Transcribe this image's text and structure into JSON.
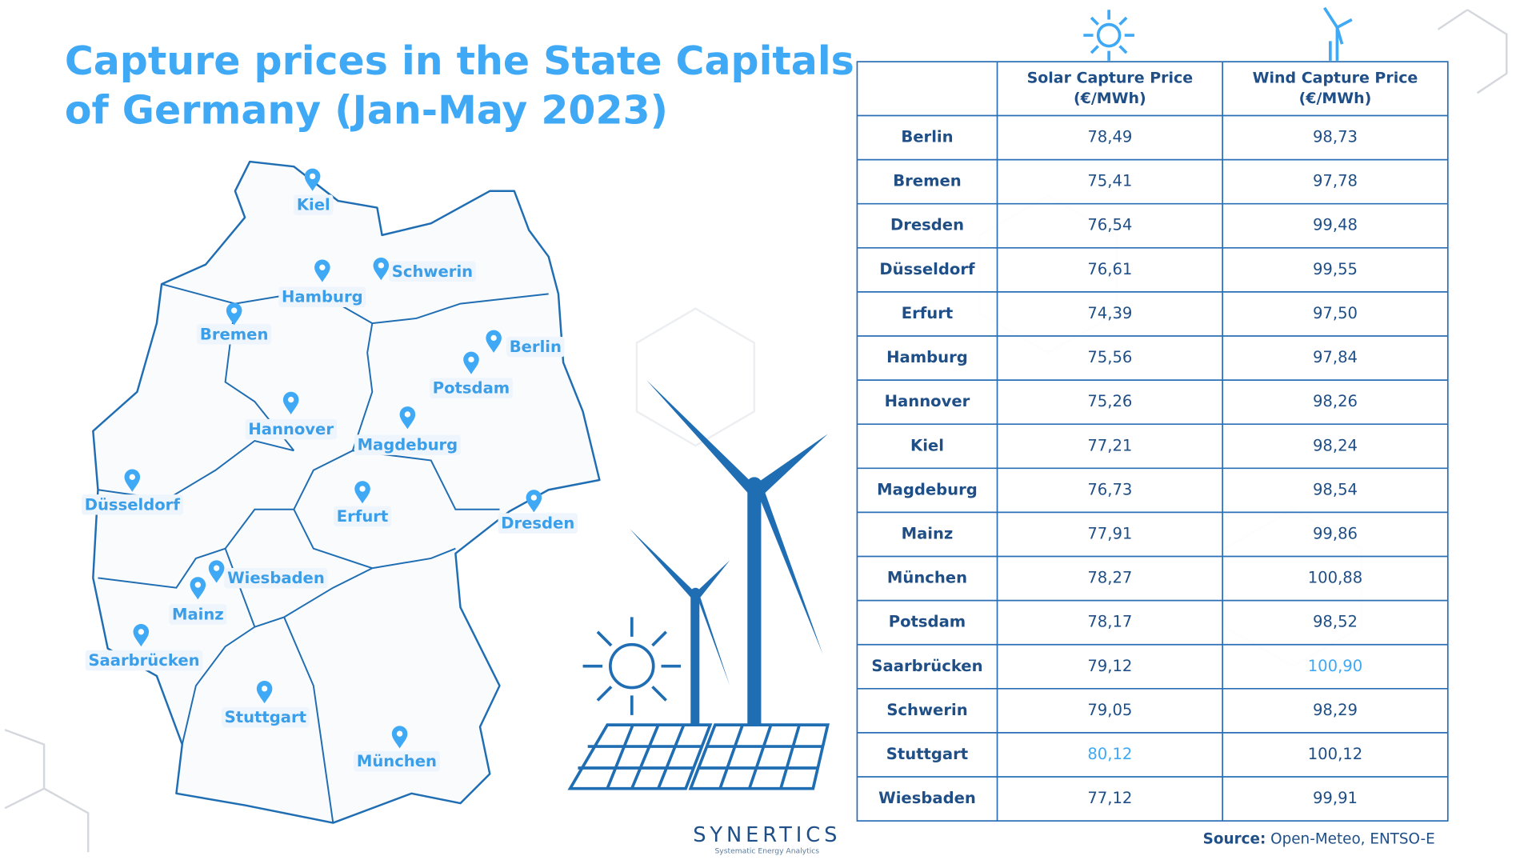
{
  "title": [
    "Capture prices in the State Capitals",
    "of Germany (Jan-May 2023)"
  ],
  "map": {
    "cities": [
      "Kiel",
      "Hamburg",
      "Schwerin",
      "Bremen",
      "Berlin",
      "Potsdam",
      "Hannover",
      "Magdeburg",
      "Düsseldorf",
      "Erfurt",
      "Dresden",
      "Wiesbaden",
      "Mainz",
      "Saarbrücken",
      "Stuttgart",
      "München"
    ]
  },
  "table": {
    "columns": [
      [
        "Solar Capture Price",
        "(€/MWh)"
      ],
      [
        "Wind Capture Price",
        "(€/MWh)"
      ]
    ],
    "rows": [
      [
        "Berlin",
        "78,49",
        "98,73"
      ],
      [
        "Bremen",
        "75,41",
        "97,78"
      ],
      [
        "Dresden",
        "76,54",
        "99,48"
      ],
      [
        "Düsseldorf",
        "76,61",
        "99,55"
      ],
      [
        "Erfurt",
        "74,39",
        "97,50"
      ],
      [
        "Hamburg",
        "75,56",
        "97,84"
      ],
      [
        "Hannover",
        "75,26",
        "98,26"
      ],
      [
        "Kiel",
        "77,21",
        "98,24"
      ],
      [
        "Magdeburg",
        "76,73",
        "98,54"
      ],
      [
        "Mainz",
        "77,91",
        "99,86"
      ],
      [
        "München",
        "78,27",
        "100,88"
      ],
      [
        "Potsdam",
        "78,17",
        "98,52"
      ],
      [
        "Saarbrücken",
        "79,12",
        "100,90"
      ],
      [
        "Schwerin",
        "79,05",
        "98,29"
      ],
      [
        "Stuttgart",
        "80,12",
        "100,12"
      ],
      [
        "Wiesbaden",
        "77,12",
        "99,91"
      ]
    ],
    "highlight": {
      "color": "#3fa9f5",
      "cells": [
        [
          12,
          2
        ],
        [
          14,
          1
        ]
      ]
    }
  },
  "source": {
    "label": "Source:",
    "text": "Open-Meteo, ENTSO-E"
  },
  "logo": {
    "name": "SYNERTICS",
    "tagline": "Systematic Energy Analytics"
  }
}
